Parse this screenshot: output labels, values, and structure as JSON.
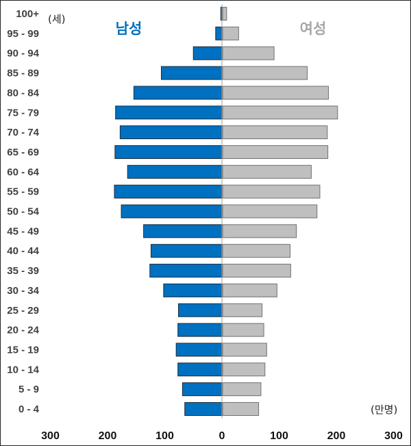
{
  "chart_data": {
    "type": "bar",
    "orientation": "horizontal-population-pyramid",
    "categories": [
      "0 - 4",
      "5 - 9",
      "10 - 14",
      "15 - 19",
      "20 - 24",
      "25 - 29",
      "30 - 34",
      "35 - 39",
      "40 - 44",
      "45 - 49",
      "50 - 54",
      "55 - 59",
      "60 - 64",
      "65 - 69",
      "70 - 74",
      "75 - 79",
      "80 - 84",
      "85 - 89",
      "90 - 94",
      "95 - 99",
      "100+"
    ],
    "series": [
      {
        "name": "남성",
        "side": "left",
        "color": "#0070C0",
        "values": [
          65,
          69,
          77,
          80,
          77,
          76,
          102,
          126,
          124,
          137,
          176,
          188,
          165,
          187,
          178,
          186,
          154,
          106,
          50,
          11,
          2
        ]
      },
      {
        "name": "여성",
        "side": "right",
        "color": "#BFBFBF",
        "values": [
          63,
          67,
          74,
          77,
          72,
          69,
          95,
          119,
          118,
          129,
          165,
          170,
          155,
          184,
          183,
          201,
          185,
          148,
          90,
          28,
          7
        ]
      }
    ],
    "xlim": [
      -300,
      300
    ],
    "xticks": [
      {
        "value": -300,
        "label": "300"
      },
      {
        "value": -200,
        "label": "200"
      },
      {
        "value": -100,
        "label": "100"
      },
      {
        "value": 0,
        "label": "0"
      },
      {
        "value": 100,
        "label": "100"
      },
      {
        "value": 200,
        "label": "200"
      },
      {
        "value": 300,
        "label": "300"
      }
    ],
    "y_unit_label": "(세)",
    "x_unit_label": "(만명)",
    "male_title": "남성",
    "female_title": "여성"
  }
}
